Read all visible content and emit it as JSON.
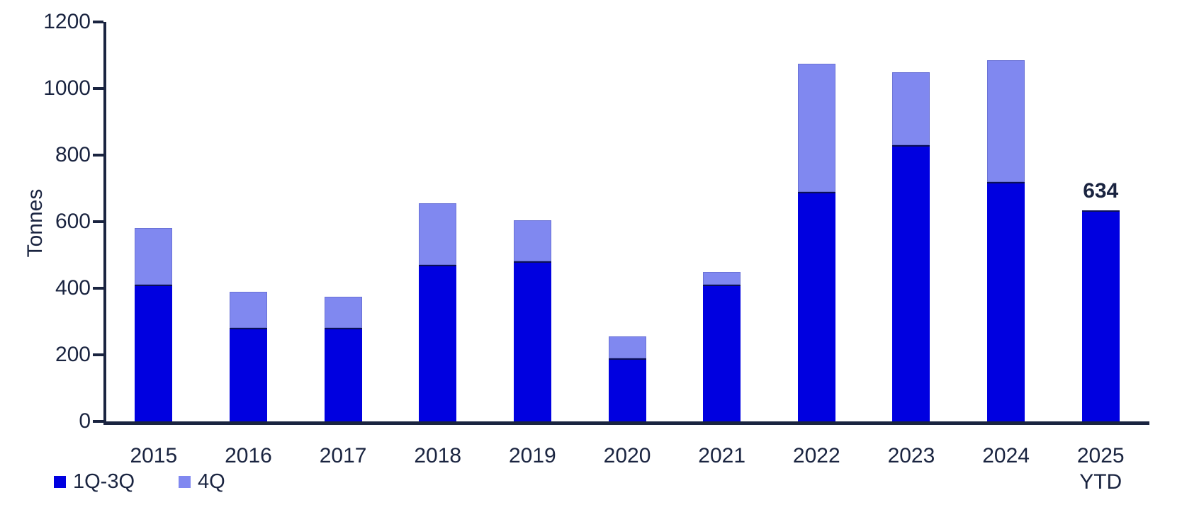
{
  "chart_data": {
    "type": "bar",
    "stacked": true,
    "title": "",
    "ylabel": "Tonnes",
    "xlabel": "",
    "ylim": [
      0,
      1200
    ],
    "yticks": [
      0,
      200,
      400,
      600,
      800,
      1000,
      1200
    ],
    "grid": false,
    "legend_position": "bottom-left",
    "axis_color": "#1A2440",
    "background_color": "#FFFFFF",
    "categories": [
      {
        "label": "2015"
      },
      {
        "label": "2016"
      },
      {
        "label": "2017"
      },
      {
        "label": "2018"
      },
      {
        "label": "2019"
      },
      {
        "label": "2020"
      },
      {
        "label": "2021"
      },
      {
        "label": "2022"
      },
      {
        "label": "2023"
      },
      {
        "label": "2024"
      },
      {
        "label": "2025",
        "sublabel": "YTD"
      }
    ],
    "series": [
      {
        "name": "1Q-3Q",
        "color": "#0000E0",
        "values": [
          410,
          280,
          280,
          470,
          480,
          190,
          410,
          690,
          830,
          720,
          634
        ]
      },
      {
        "name": "4Q",
        "color": "#8088F0",
        "values": [
          170,
          110,
          95,
          185,
          125,
          65,
          40,
          385,
          220,
          365,
          0
        ]
      }
    ],
    "annotations": [
      {
        "category_index": 10,
        "text": "634"
      }
    ]
  }
}
